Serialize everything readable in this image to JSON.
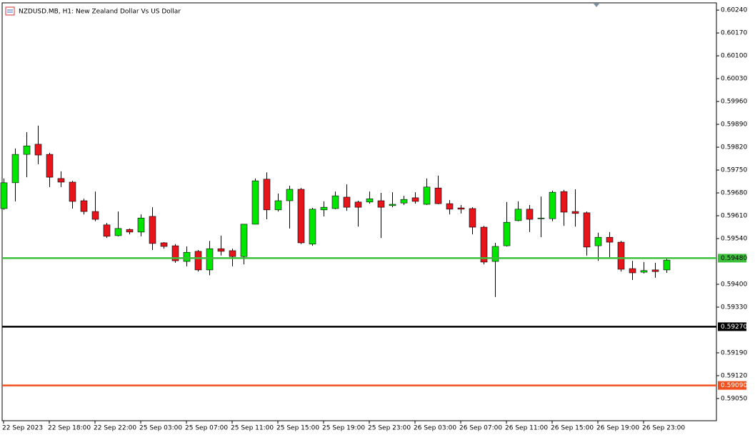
{
  "chart_data": {
    "type": "candlestick",
    "title": "NZDUSD.MB, H1:  New Zealand Dollar Vs US Dollar",
    "categories": [
      "22 Sep 2023",
      null,
      null,
      null,
      "22 Sep 18:00",
      null,
      null,
      null,
      "22 Sep 22:00",
      null,
      null,
      null,
      "25 Sep 03:00",
      null,
      null,
      null,
      "25 Sep 07:00",
      null,
      null,
      null,
      "25 Sep 11:00",
      null,
      null,
      null,
      "25 Sep 15:00",
      null,
      null,
      null,
      "25 Sep 19:00",
      null,
      null,
      null,
      "25 Sep 23:00",
      null,
      null,
      null,
      "26 Sep 03:00",
      null,
      null,
      null,
      "26 Sep 07:00",
      null,
      null,
      null,
      "26 Sep 11:00",
      null,
      null,
      null,
      "26 Sep 15:00",
      null,
      null,
      null,
      "26 Sep 19:00",
      null,
      null,
      null,
      "26 Sep 23:00",
      null,
      null
    ],
    "open": [
      0.59632,
      0.59711,
      0.59798,
      0.59829,
      0.59798,
      0.59724,
      0.59713,
      0.59656,
      0.59623,
      0.59582,
      0.59549,
      0.59568,
      0.5956,
      0.59608,
      0.59527,
      0.59518,
      0.5947,
      0.59501,
      0.59444,
      0.59509,
      0.59503,
      0.59485,
      0.59584,
      0.59722,
      0.59628,
      0.59656,
      0.59691,
      0.59523,
      0.59628,
      0.59632,
      0.59667,
      0.59652,
      0.59652,
      0.59656,
      0.59641,
      0.59649,
      0.59665,
      0.59645,
      0.59695,
      0.59647,
      0.59634,
      0.59632,
      0.59575,
      0.5947,
      0.59518,
      0.59595,
      0.5963,
      0.59601,
      0.59601,
      0.59684,
      0.59623,
      0.59619,
      0.59518,
      0.59544,
      0.59529,
      0.59448,
      0.59437,
      0.59444,
      0.59444
    ],
    "high": [
      0.59724,
      0.59816,
      0.59866,
      0.59886,
      0.59803,
      0.59746,
      0.59717,
      0.59662,
      0.59684,
      0.59588,
      0.59623,
      0.59571,
      0.59614,
      0.59636,
      0.59529,
      0.59523,
      0.59516,
      0.59505,
      0.59533,
      0.59549,
      0.59509,
      0.59584,
      0.59724,
      0.59743,
      0.59678,
      0.59702,
      0.59695,
      0.59634,
      0.59654,
      0.59684,
      0.59706,
      0.59656,
      0.59684,
      0.5968,
      0.59682,
      0.59671,
      0.59682,
      0.59724,
      0.59733,
      0.59658,
      0.59643,
      0.59636,
      0.59579,
      0.59527,
      0.59652,
      0.59654,
      0.59643,
      0.59669,
      0.59687,
      0.59689,
      0.59691,
      0.59623,
      0.59558,
      0.5956,
      0.59533,
      0.59472,
      0.59468,
      0.59466,
      0.59479
    ],
    "low": [
      0.59628,
      0.59654,
      0.59728,
      0.59768,
      0.59698,
      0.59698,
      0.59632,
      0.59614,
      0.59593,
      0.59542,
      0.59547,
      0.59553,
      0.59547,
      0.59505,
      0.59509,
      0.59466,
      0.59455,
      0.59439,
      0.59428,
      0.59488,
      0.59455,
      0.59461,
      0.59584,
      0.59599,
      0.59623,
      0.59571,
      0.59523,
      0.59518,
      0.59608,
      0.5963,
      0.59625,
      0.59577,
      0.59647,
      0.59542,
      0.59636,
      0.59643,
      0.59647,
      0.59643,
      0.59645,
      0.59614,
      0.59617,
      0.59553,
      0.59461,
      0.59361,
      0.59516,
      0.59593,
      0.5956,
      0.59544,
      0.59593,
      0.59579,
      0.59577,
      0.59488,
      0.59472,
      0.59483,
      0.59439,
      0.59413,
      0.59433,
      0.5942,
      0.59435
    ],
    "close": [
      0.59711,
      0.59798,
      0.59824,
      0.59796,
      0.59728,
      0.59713,
      0.59654,
      0.59623,
      0.59599,
      0.59547,
      0.59571,
      0.5956,
      0.59603,
      0.59525,
      0.59516,
      0.59472,
      0.59498,
      0.59444,
      0.59509,
      0.59501,
      0.59485,
      0.59584,
      0.59717,
      0.59628,
      0.59656,
      0.59691,
      0.59527,
      0.5963,
      0.59636,
      0.59671,
      0.59636,
      0.59636,
      0.59662,
      0.59636,
      0.59645,
      0.5966,
      0.59654,
      0.59698,
      0.59647,
      0.5963,
      0.5963,
      0.59575,
      0.59468,
      0.59516,
      0.5959,
      0.5963,
      0.59599,
      0.59603,
      0.59682,
      0.59621,
      0.59617,
      0.59514,
      0.59544,
      0.59529,
      0.59446,
      0.59435,
      0.59442,
      0.59439,
      0.59474
    ],
    "up_color": "#00e600",
    "down_color": "#e8141c",
    "ylim": [
      0.58982,
      0.6026
    ],
    "yticks": [
      {
        "value": 0.6024,
        "label": "0.60240"
      },
      {
        "value": 0.6017,
        "label": "0.60170"
      },
      {
        "value": 0.601,
        "label": "0.60100"
      },
      {
        "value": 0.6003,
        "label": "0.60030"
      },
      {
        "value": 0.5996,
        "label": "0.59960"
      },
      {
        "value": 0.5989,
        "label": "0.59890"
      },
      {
        "value": 0.5982,
        "label": "0.59820"
      },
      {
        "value": 0.5975,
        "label": "0.59750"
      },
      {
        "value": 0.5968,
        "label": "0.59680"
      },
      {
        "value": 0.5961,
        "label": "0.59610"
      },
      {
        "value": 0.5954,
        "label": "0.59540"
      },
      {
        "value": 0.594,
        "label": "0.59400"
      },
      {
        "value": 0.5933,
        "label": "0.59330"
      },
      {
        "value": 0.5919,
        "label": "0.59190"
      },
      {
        "value": 0.5912,
        "label": "0.59120"
      },
      {
        "value": 0.5905,
        "label": "0.59050"
      }
    ],
    "levels": [
      {
        "value": 0.5948,
        "label": "0.59480",
        "color": "#3cc03c"
      },
      {
        "value": 0.5927,
        "label": "0.59270",
        "color": "#000000"
      },
      {
        "value": 0.5909,
        "label": "0.59090",
        "color": "#f0501e"
      }
    ]
  }
}
